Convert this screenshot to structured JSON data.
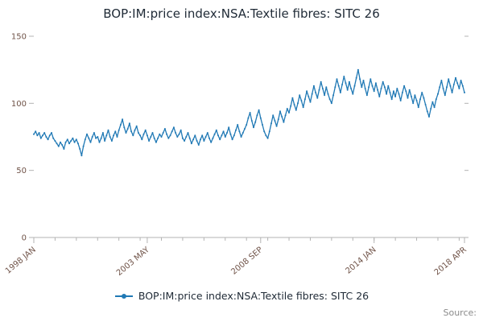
{
  "header": {
    "title": "BOP:IM:price index:NSA:Textile fibres: SITC 26"
  },
  "legend": {
    "label": "BOP:IM:price index:NSA:Textile fibres: SITC 26"
  },
  "source": {
    "label": "Source:"
  },
  "colors": {
    "line": "#2079b5",
    "axis": "#b3b3b3",
    "tick_label": "#6f5247",
    "title": "#1f2a36",
    "source_text": "#8a8a8a"
  },
  "chart_data": {
    "type": "line",
    "title": "BOP:IM:price index:NSA:Textile fibres: SITC 26",
    "xlabel": "",
    "ylabel": "",
    "ylim": [
      0,
      150
    ],
    "yticks": [
      0,
      50,
      100,
      150
    ],
    "grid": false,
    "legend_position": "bottom",
    "x_tick_indices": [
      0,
      64,
      128,
      192,
      243
    ],
    "x_tick_labels": [
      "1998 JAN",
      "2003 MAY",
      "2008 SEP",
      "2014 JAN",
      "2018 APR"
    ],
    "minor_tick_every": 12,
    "x_description": "Monthly observations, 1998 JAN to 2018 APR (244 points)",
    "series_name": "BOP:IM:price index:NSA:Textile fibres: SITC 26",
    "values": [
      77,
      79,
      76,
      78,
      74,
      76,
      78,
      75,
      73,
      76,
      78,
      74,
      72,
      70,
      68,
      71,
      69,
      66,
      71,
      73,
      70,
      72,
      74,
      71,
      73,
      70,
      66,
      61,
      68,
      73,
      77,
      74,
      71,
      75,
      78,
      74,
      75,
      71,
      74,
      78,
      72,
      76,
      80,
      75,
      72,
      76,
      79,
      75,
      80,
      84,
      88,
      82,
      78,
      81,
      85,
      79,
      76,
      80,
      83,
      78,
      76,
      73,
      77,
      80,
      76,
      72,
      75,
      78,
      74,
      71,
      74,
      77,
      75,
      78,
      81,
      77,
      74,
      76,
      79,
      82,
      78,
      75,
      77,
      80,
      74,
      72,
      75,
      78,
      74,
      70,
      73,
      76,
      72,
      69,
      73,
      76,
      72,
      75,
      78,
      74,
      71,
      74,
      77,
      80,
      76,
      73,
      76,
      79,
      75,
      78,
      82,
      77,
      73,
      76,
      80,
      84,
      79,
      75,
      78,
      81,
      84,
      89,
      93,
      87,
      82,
      86,
      91,
      95,
      89,
      84,
      79,
      76,
      74,
      79,
      85,
      91,
      87,
      83,
      88,
      94,
      90,
      86,
      91,
      96,
      93,
      98,
      104,
      99,
      95,
      100,
      106,
      102,
      97,
      103,
      109,
      105,
      101,
      107,
      113,
      108,
      104,
      110,
      116,
      111,
      106,
      112,
      107,
      103,
      100,
      106,
      112,
      118,
      113,
      108,
      114,
      120,
      115,
      110,
      116,
      111,
      107,
      113,
      119,
      125,
      118,
      112,
      117,
      111,
      106,
      112,
      118,
      113,
      109,
      115,
      110,
      105,
      111,
      116,
      112,
      107,
      113,
      108,
      103,
      109,
      105,
      111,
      107,
      102,
      108,
      113,
      109,
      104,
      110,
      105,
      100,
      106,
      102,
      97,
      103,
      108,
      104,
      99,
      94,
      90,
      96,
      101,
      97,
      103,
      107,
      112,
      117,
      111,
      106,
      112,
      118,
      113,
      108,
      114,
      119,
      115,
      111,
      117,
      113,
      108
    ]
  }
}
